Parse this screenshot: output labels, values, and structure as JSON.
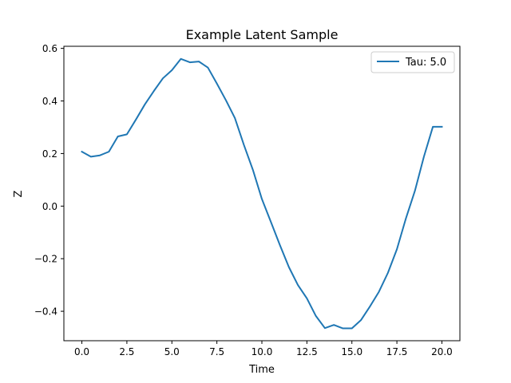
{
  "chart_data": {
    "type": "line",
    "title": "Example Latent Sample",
    "xlabel": "Time",
    "ylabel": "Z",
    "xlim": [
      -1.0,
      21.0
    ],
    "ylim": [
      -0.512,
      0.608
    ],
    "xticks": [
      0.0,
      2.5,
      5.0,
      7.5,
      10.0,
      12.5,
      15.0,
      17.5,
      20.0
    ],
    "xtick_labels": [
      "0.0",
      "2.5",
      "5.0",
      "7.5",
      "10.0",
      "12.5",
      "15.0",
      "17.5",
      "20.0"
    ],
    "yticks": [
      0.6,
      0.4,
      0.2,
      0.0,
      -0.2,
      -0.4
    ],
    "ytick_labels": [
      "0.6",
      "0.4",
      "0.2",
      "0.0",
      "−0.2",
      "−0.4"
    ],
    "grid": false,
    "legend_position": "top-right",
    "series": [
      {
        "name": "Tau: 5.0",
        "color": "#1f77b4",
        "x": [
          0.0,
          0.5,
          1.0,
          1.5,
          2.0,
          2.5,
          3.0,
          3.5,
          4.0,
          4.5,
          5.0,
          5.5,
          6.0,
          6.5,
          7.0,
          7.5,
          8.0,
          8.5,
          9.0,
          9.5,
          10.0,
          10.5,
          11.0,
          11.5,
          12.0,
          12.5,
          13.0,
          13.5,
          14.0,
          14.5,
          15.0,
          15.5,
          16.0,
          16.5,
          17.0,
          17.5,
          18.0,
          18.5,
          19.0,
          19.5,
          20.0
        ],
        "values": [
          0.207,
          0.188,
          0.193,
          0.207,
          0.265,
          0.273,
          0.329,
          0.387,
          0.438,
          0.486,
          0.517,
          0.56,
          0.547,
          0.55,
          0.527,
          0.466,
          0.403,
          0.335,
          0.233,
          0.138,
          0.027,
          -0.06,
          -0.148,
          -0.232,
          -0.3,
          -0.351,
          -0.418,
          -0.464,
          -0.452,
          -0.465,
          -0.465,
          -0.434,
          -0.382,
          -0.326,
          -0.254,
          -0.164,
          -0.047,
          0.058,
          0.188,
          0.302,
          0.302
        ]
      }
    ]
  }
}
